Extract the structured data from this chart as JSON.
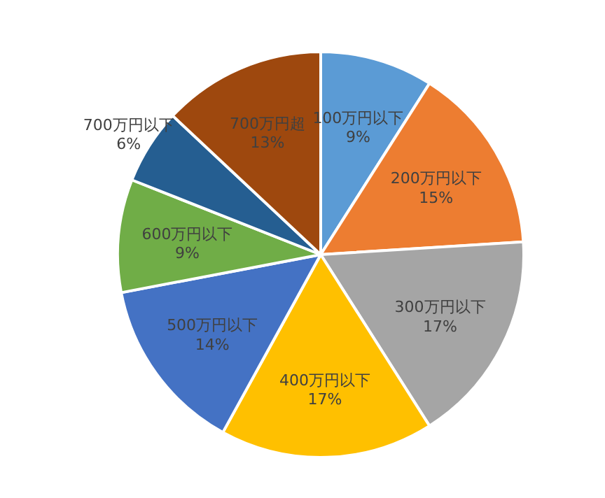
{
  "chart_data": {
    "type": "pie",
    "categories": [
      "100万円以下",
      "200万円以下",
      "300万円以下",
      "400万円以下",
      "500万円以下",
      "600万円以下",
      "700万円以下",
      "700万円超"
    ],
    "values": [
      9,
      15,
      17,
      17,
      14,
      9,
      6,
      13
    ],
    "value_labels": [
      "9%",
      "15%",
      "17%",
      "17%",
      "14%",
      "9%",
      "6%",
      "13%"
    ],
    "colors": [
      "#5b9bd5",
      "#ed7d31",
      "#a5a5a5",
      "#ffc000",
      "#4472c4",
      "#70ad47",
      "#255e91",
      "#9e480e"
    ],
    "legend": false
  }
}
